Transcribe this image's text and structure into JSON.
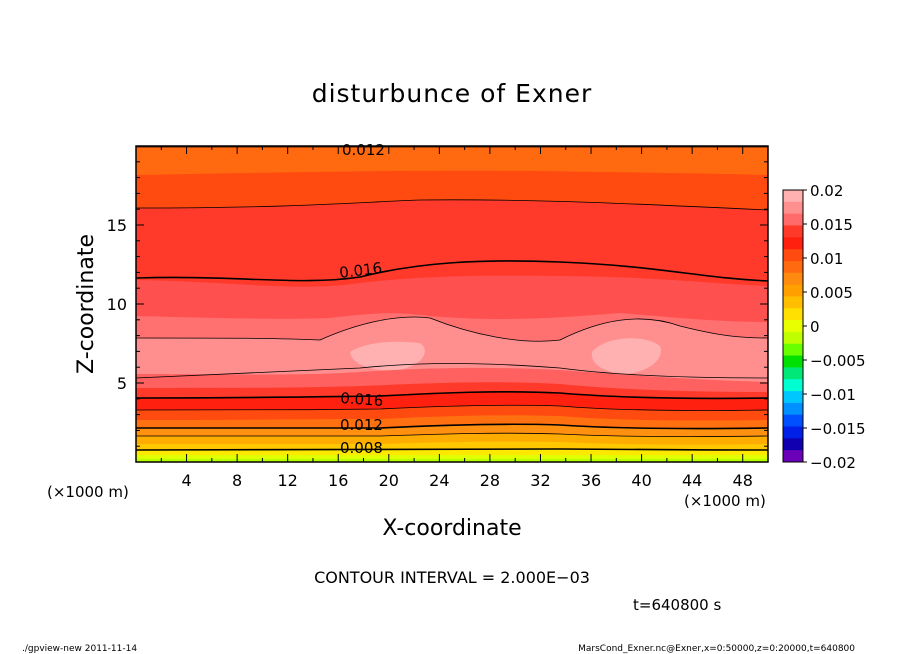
{
  "chart_data": {
    "type": "heatmap",
    "title": "disturbunce of Exner",
    "xlabel": "X-coordinate",
    "ylabel": "Z-coordinate",
    "x_unit": "(×1000 m)",
    "y_unit": "(×1000 m)",
    "xlim": [
      0,
      50
    ],
    "ylim": [
      0,
      20
    ],
    "x_ticks": [
      "4",
      "8",
      "12",
      "16",
      "20",
      "24",
      "28",
      "32",
      "36",
      "40",
      "44",
      "48"
    ],
    "y_ticks": [
      "5",
      "10",
      "15"
    ],
    "colorbar": {
      "tick_labels": [
        "0.02",
        "0.015",
        "0.01",
        "0.005",
        "0",
        "−0.005",
        "−0.01",
        "−0.015",
        "−0.02"
      ],
      "range": [
        -0.02,
        0.02
      ]
    },
    "contour_labels": [
      "0.012",
      "0.016",
      "0.016",
      "0.012",
      "0.008"
    ],
    "contour_interval_text": "CONTOUR INTERVAL = 2.000E−03",
    "time_text": "t=640800 s"
  },
  "footer": {
    "left": "./gpview-new   2011-11-14",
    "right": "MarsCond_Exner.nc@Exner,x=0:50000,z=0:20000,t=640800"
  },
  "colors": {
    "band_colors": [
      "#ffb0b0",
      "#ff9090",
      "#ff6a6a",
      "#ff3a2a",
      "#ff2010",
      "#ff4a10",
      "#ff6a10",
      "#ff8a10",
      "#ffa000",
      "#ffbf00",
      "#ffe000",
      "#e8ff00",
      "#c0ff00",
      "#6aff00",
      "#00e000",
      "#00e878",
      "#00ffd0",
      "#00c8ff",
      "#0090ff",
      "#0050ff",
      "#0020e8",
      "#1000b0",
      "#6a00b8"
    ]
  }
}
